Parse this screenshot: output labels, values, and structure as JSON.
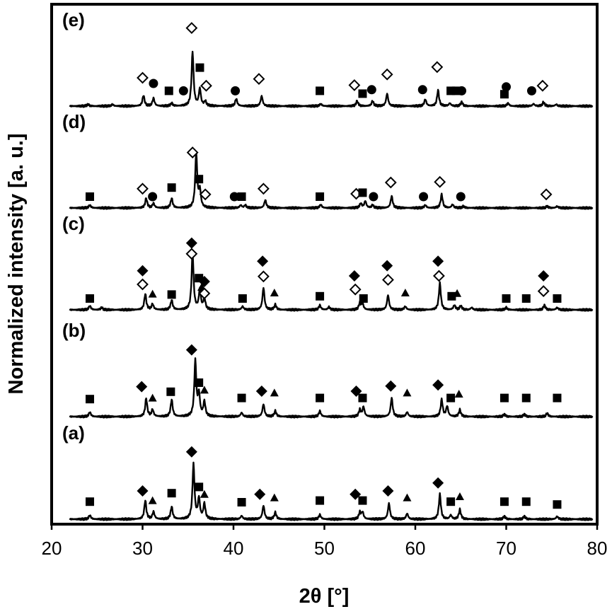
{
  "chart_data": {
    "type": "line",
    "xlabel": "2θ [°]",
    "ylabel": "Normalized intensity [a. u.]",
    "xlim": [
      20,
      80
    ],
    "x_ticks": [
      "20",
      "30",
      "40",
      "50",
      "60",
      "70",
      "80"
    ],
    "grid": false,
    "legend": "none",
    "panels": [
      {
        "label": "(a)",
        "peaks": [
          [
            24.2,
            0.07
          ],
          [
            30.3,
            0.33
          ],
          [
            31.2,
            0.13
          ],
          [
            33.2,
            0.22
          ],
          [
            35.6,
            0.97
          ],
          [
            36.2,
            0.36
          ],
          [
            36.8,
            0.27
          ],
          [
            40.9,
            0.06
          ],
          [
            43.3,
            0.24
          ],
          [
            44.6,
            0.12
          ],
          [
            49.5,
            0.08
          ],
          [
            53.9,
            0.12
          ],
          [
            54.2,
            0.12
          ],
          [
            57.1,
            0.28
          ],
          [
            59.1,
            0.1
          ],
          [
            62.7,
            0.44
          ],
          [
            63.9,
            0.07
          ],
          [
            64.9,
            0.17
          ],
          [
            69.8,
            0.05
          ],
          [
            72.0,
            0.05
          ],
          [
            75.6,
            0.05
          ]
        ],
        "markers": [
          {
            "shape": "square",
            "x": 24.2,
            "y": 0.31
          },
          {
            "shape": "diamond",
            "x": 30.0,
            "y": 0.5
          },
          {
            "shape": "triangle",
            "x": 31.1,
            "y": 0.33
          },
          {
            "shape": "square",
            "x": 33.2,
            "y": 0.46
          },
          {
            "shape": "diamond",
            "x": 35.4,
            "y": 1.19
          },
          {
            "shape": "square",
            "x": 36.2,
            "y": 0.57
          },
          {
            "shape": "triangle",
            "x": 36.8,
            "y": 0.44
          },
          {
            "shape": "square",
            "x": 40.9,
            "y": 0.3
          },
          {
            "shape": "diamond",
            "x": 42.9,
            "y": 0.44
          },
          {
            "shape": "triangle",
            "x": 44.5,
            "y": 0.38
          },
          {
            "shape": "square",
            "x": 49.5,
            "y": 0.33
          },
          {
            "shape": "diamond",
            "x": 53.4,
            "y": 0.44
          },
          {
            "shape": "square",
            "x": 54.2,
            "y": 0.33
          },
          {
            "shape": "diamond",
            "x": 57.0,
            "y": 0.5
          },
          {
            "shape": "triangle",
            "x": 59.1,
            "y": 0.38
          },
          {
            "shape": "diamond",
            "x": 62.5,
            "y": 0.64
          },
          {
            "shape": "square",
            "x": 63.9,
            "y": 0.31
          },
          {
            "shape": "triangle",
            "x": 64.9,
            "y": 0.4
          },
          {
            "shape": "square",
            "x": 69.8,
            "y": 0.31
          },
          {
            "shape": "square",
            "x": 72.2,
            "y": 0.31
          },
          {
            "shape": "square",
            "x": 75.6,
            "y": 0.26
          }
        ]
      },
      {
        "label": "(b)",
        "peaks": [
          [
            24.2,
            0.08
          ],
          [
            30.4,
            0.32
          ],
          [
            31.1,
            0.12
          ],
          [
            33.2,
            0.3
          ],
          [
            35.8,
            0.98
          ],
          [
            36.2,
            0.38
          ],
          [
            36.8,
            0.26
          ],
          [
            40.9,
            0.07
          ],
          [
            43.3,
            0.22
          ],
          [
            44.6,
            0.1
          ],
          [
            49.5,
            0.1
          ],
          [
            53.9,
            0.12
          ],
          [
            54.3,
            0.17
          ],
          [
            57.4,
            0.33
          ],
          [
            59.1,
            0.08
          ],
          [
            62.9,
            0.3
          ],
          [
            63.5,
            0.18
          ],
          [
            64.9,
            0.12
          ],
          [
            69.8,
            0.04
          ],
          [
            72.0,
            0.04
          ],
          [
            74.5,
            0.06
          ]
        ],
        "markers": [
          {
            "shape": "square",
            "x": 24.2,
            "y": 0.31
          },
          {
            "shape": "diamond",
            "x": 29.9,
            "y": 0.53
          },
          {
            "shape": "triangle",
            "x": 31.1,
            "y": 0.33
          },
          {
            "shape": "square",
            "x": 33.1,
            "y": 0.44
          },
          {
            "shape": "diamond",
            "x": 35.4,
            "y": 1.18
          },
          {
            "shape": "square",
            "x": 36.2,
            "y": 0.6
          },
          {
            "shape": "triangle",
            "x": 36.8,
            "y": 0.47
          },
          {
            "shape": "square",
            "x": 40.9,
            "y": 0.33
          },
          {
            "shape": "diamond",
            "x": 43.1,
            "y": 0.45
          },
          {
            "shape": "triangle",
            "x": 44.5,
            "y": 0.42
          },
          {
            "shape": "square",
            "x": 49.5,
            "y": 0.33
          },
          {
            "shape": "diamond",
            "x": 53.5,
            "y": 0.45
          },
          {
            "shape": "square",
            "x": 54.2,
            "y": 0.33
          },
          {
            "shape": "diamond",
            "x": 57.3,
            "y": 0.54
          },
          {
            "shape": "triangle",
            "x": 59.1,
            "y": 0.42
          },
          {
            "shape": "diamond",
            "x": 62.5,
            "y": 0.56
          },
          {
            "shape": "square",
            "x": 63.9,
            "y": 0.33
          },
          {
            "shape": "triangle",
            "x": 64.8,
            "y": 0.4
          },
          {
            "shape": "square",
            "x": 69.8,
            "y": 0.33
          },
          {
            "shape": "square",
            "x": 72.2,
            "y": 0.33
          },
          {
            "shape": "square",
            "x": 75.6,
            "y": 0.33
          }
        ]
      },
      {
        "label": "(c)",
        "peaks": [
          [
            24.2,
            0.07
          ],
          [
            25.5,
            0.04
          ],
          [
            30.3,
            0.28
          ],
          [
            31.1,
            0.1
          ],
          [
            33.2,
            0.17
          ],
          [
            35.5,
            1.0
          ],
          [
            36.3,
            0.35
          ],
          [
            36.8,
            0.2
          ],
          [
            41.0,
            0.06
          ],
          [
            43.3,
            0.39
          ],
          [
            44.6,
            0.09
          ],
          [
            49.5,
            0.08
          ],
          [
            50.5,
            0.05
          ],
          [
            53.9,
            0.12
          ],
          [
            54.2,
            0.1
          ],
          [
            57.0,
            0.26
          ],
          [
            58.9,
            0.06
          ],
          [
            62.7,
            0.47
          ],
          [
            64.3,
            0.08
          ],
          [
            65.0,
            0.07
          ],
          [
            66.2,
            0.04
          ],
          [
            70.0,
            0.04
          ],
          [
            74.2,
            0.08
          ],
          [
            75.6,
            0.04
          ]
        ],
        "markers": [
          {
            "shape": "square",
            "x": 24.2,
            "y": 0.2
          },
          {
            "shape": "open-diamond",
            "x": 30.0,
            "y": 0.45
          },
          {
            "shape": "diamond",
            "x": 30.0,
            "y": 0.69
          },
          {
            "shape": "triangle",
            "x": 31.1,
            "y": 0.28
          },
          {
            "shape": "square",
            "x": 33.2,
            "y": 0.27
          },
          {
            "shape": "open-diamond",
            "x": 35.4,
            "y": 0.99
          },
          {
            "shape": "diamond",
            "x": 35.4,
            "y": 1.18
          },
          {
            "shape": "square",
            "x": 36.2,
            "y": 0.56
          },
          {
            "shape": "diamond",
            "x": 36.8,
            "y": 0.5
          },
          {
            "shape": "triangle",
            "x": 36.5,
            "y": 0.4
          },
          {
            "shape": "open-diamond",
            "x": 36.8,
            "y": 0.29
          },
          {
            "shape": "square",
            "x": 41.0,
            "y": 0.2
          },
          {
            "shape": "diamond",
            "x": 43.2,
            "y": 0.86
          },
          {
            "shape": "open-diamond",
            "x": 43.3,
            "y": 0.59
          },
          {
            "shape": "triangle",
            "x": 44.5,
            "y": 0.3
          },
          {
            "shape": "square",
            "x": 49.5,
            "y": 0.24
          },
          {
            "shape": "diamond",
            "x": 53.3,
            "y": 0.6
          },
          {
            "shape": "open-diamond",
            "x": 53.4,
            "y": 0.36
          },
          {
            "shape": "square",
            "x": 54.3,
            "y": 0.2
          },
          {
            "shape": "diamond",
            "x": 56.9,
            "y": 0.78
          },
          {
            "shape": "open-diamond",
            "x": 57.0,
            "y": 0.53
          },
          {
            "shape": "triangle",
            "x": 58.9,
            "y": 0.3
          },
          {
            "shape": "diamond",
            "x": 62.5,
            "y": 0.86
          },
          {
            "shape": "open-diamond",
            "x": 62.6,
            "y": 0.6
          },
          {
            "shape": "square",
            "x": 64.0,
            "y": 0.24
          },
          {
            "shape": "triangle",
            "x": 64.6,
            "y": 0.29
          },
          {
            "shape": "square",
            "x": 70.0,
            "y": 0.2
          },
          {
            "shape": "square",
            "x": 72.2,
            "y": 0.2
          },
          {
            "shape": "diamond",
            "x": 74.1,
            "y": 0.6
          },
          {
            "shape": "open-diamond",
            "x": 74.1,
            "y": 0.33
          },
          {
            "shape": "square",
            "x": 75.6,
            "y": 0.2
          }
        ]
      },
      {
        "label": "(d)",
        "peaks": [
          [
            24.2,
            0.05
          ],
          [
            30.4,
            0.17
          ],
          [
            31.2,
            0.08
          ],
          [
            33.2,
            0.17
          ],
          [
            35.9,
            0.96
          ],
          [
            36.3,
            0.3
          ],
          [
            40.8,
            0.05
          ],
          [
            41.3,
            0.05
          ],
          [
            43.5,
            0.14
          ],
          [
            49.6,
            0.06
          ],
          [
            54.0,
            0.08
          ],
          [
            54.5,
            0.12
          ],
          [
            55.3,
            0.05
          ],
          [
            57.4,
            0.21
          ],
          [
            61.1,
            0.05
          ],
          [
            62.9,
            0.24
          ],
          [
            64.1,
            0.06
          ],
          [
            65.3,
            0.03
          ],
          [
            74.5,
            0.03
          ],
          [
            75.6,
            0.03
          ]
        ],
        "markers": [
          {
            "shape": "square",
            "x": 24.2,
            "y": 0.2
          },
          {
            "shape": "open-diamond",
            "x": 30.0,
            "y": 0.34
          },
          {
            "shape": "circle",
            "x": 31.1,
            "y": 0.2
          },
          {
            "shape": "square",
            "x": 33.2,
            "y": 0.36
          },
          {
            "shape": "open-diamond",
            "x": 35.5,
            "y": 0.98
          },
          {
            "shape": "square",
            "x": 36.2,
            "y": 0.51
          },
          {
            "shape": "open-diamond",
            "x": 36.9,
            "y": 0.24
          },
          {
            "shape": "circle",
            "x": 40.1,
            "y": 0.2
          },
          {
            "shape": "square",
            "x": 40.9,
            "y": 0.2
          },
          {
            "shape": "open-diamond",
            "x": 43.3,
            "y": 0.34
          },
          {
            "shape": "square",
            "x": 49.5,
            "y": 0.2
          },
          {
            "shape": "open-diamond",
            "x": 53.5,
            "y": 0.25
          },
          {
            "shape": "square",
            "x": 54.2,
            "y": 0.27
          },
          {
            "shape": "circle",
            "x": 55.4,
            "y": 0.2
          },
          {
            "shape": "open-diamond",
            "x": 57.3,
            "y": 0.45
          },
          {
            "shape": "circle",
            "x": 60.9,
            "y": 0.2
          },
          {
            "shape": "open-diamond",
            "x": 62.7,
            "y": 0.46
          },
          {
            "shape": "circle",
            "x": 65.0,
            "y": 0.2
          },
          {
            "shape": "open-diamond",
            "x": 74.4,
            "y": 0.24
          }
        ]
      },
      {
        "label": "(e)",
        "peaks": [
          [
            24.0,
            0.03
          ],
          [
            26.7,
            0.03
          ],
          [
            30.1,
            0.19
          ],
          [
            31.2,
            0.14
          ],
          [
            33.2,
            0.05
          ],
          [
            35.5,
            0.96
          ],
          [
            36.3,
            0.3
          ],
          [
            36.9,
            0.08
          ],
          [
            40.3,
            0.13
          ],
          [
            43.1,
            0.18
          ],
          [
            49.6,
            0.04
          ],
          [
            53.6,
            0.09
          ],
          [
            55.3,
            0.09
          ],
          [
            56.9,
            0.22
          ],
          [
            61.1,
            0.12
          ],
          [
            62.5,
            0.28
          ],
          [
            63.8,
            0.05
          ],
          [
            65.1,
            0.07
          ],
          [
            70.2,
            0.05
          ],
          [
            73.0,
            0.04
          ],
          [
            74.1,
            0.07
          ],
          [
            75.5,
            0.03
          ]
        ],
        "markers": [
          {
            "shape": "open-diamond",
            "x": 30.0,
            "y": 0.5
          },
          {
            "shape": "circle",
            "x": 31.2,
            "y": 0.4
          },
          {
            "shape": "square",
            "x": 32.9,
            "y": 0.27
          },
          {
            "shape": "circle",
            "x": 34.5,
            "y": 0.27
          },
          {
            "shape": "open-diamond",
            "x": 35.4,
            "y": 1.38
          },
          {
            "shape": "square",
            "x": 36.3,
            "y": 0.68
          },
          {
            "shape": "open-diamond",
            "x": 37.0,
            "y": 0.36
          },
          {
            "shape": "circle",
            "x": 40.2,
            "y": 0.27
          },
          {
            "shape": "open-diamond",
            "x": 42.8,
            "y": 0.48
          },
          {
            "shape": "square",
            "x": 49.5,
            "y": 0.27
          },
          {
            "shape": "open-diamond",
            "x": 53.3,
            "y": 0.37
          },
          {
            "shape": "square",
            "x": 54.2,
            "y": 0.22
          },
          {
            "shape": "circle",
            "x": 55.2,
            "y": 0.29
          },
          {
            "shape": "open-diamond",
            "x": 56.9,
            "y": 0.56
          },
          {
            "shape": "circle",
            "x": 60.8,
            "y": 0.29
          },
          {
            "shape": "open-diamond",
            "x": 62.4,
            "y": 0.69
          },
          {
            "shape": "square",
            "x": 63.9,
            "y": 0.27
          },
          {
            "shape": "square",
            "x": 64.5,
            "y": 0.27
          },
          {
            "shape": "circle",
            "x": 65.1,
            "y": 0.27
          },
          {
            "shape": "circle",
            "x": 70.0,
            "y": 0.34
          },
          {
            "shape": "square",
            "x": 69.8,
            "y": 0.21
          },
          {
            "shape": "circle",
            "x": 72.8,
            "y": 0.27
          },
          {
            "shape": "open-diamond",
            "x": 74.0,
            "y": 0.36
          }
        ]
      }
    ]
  }
}
